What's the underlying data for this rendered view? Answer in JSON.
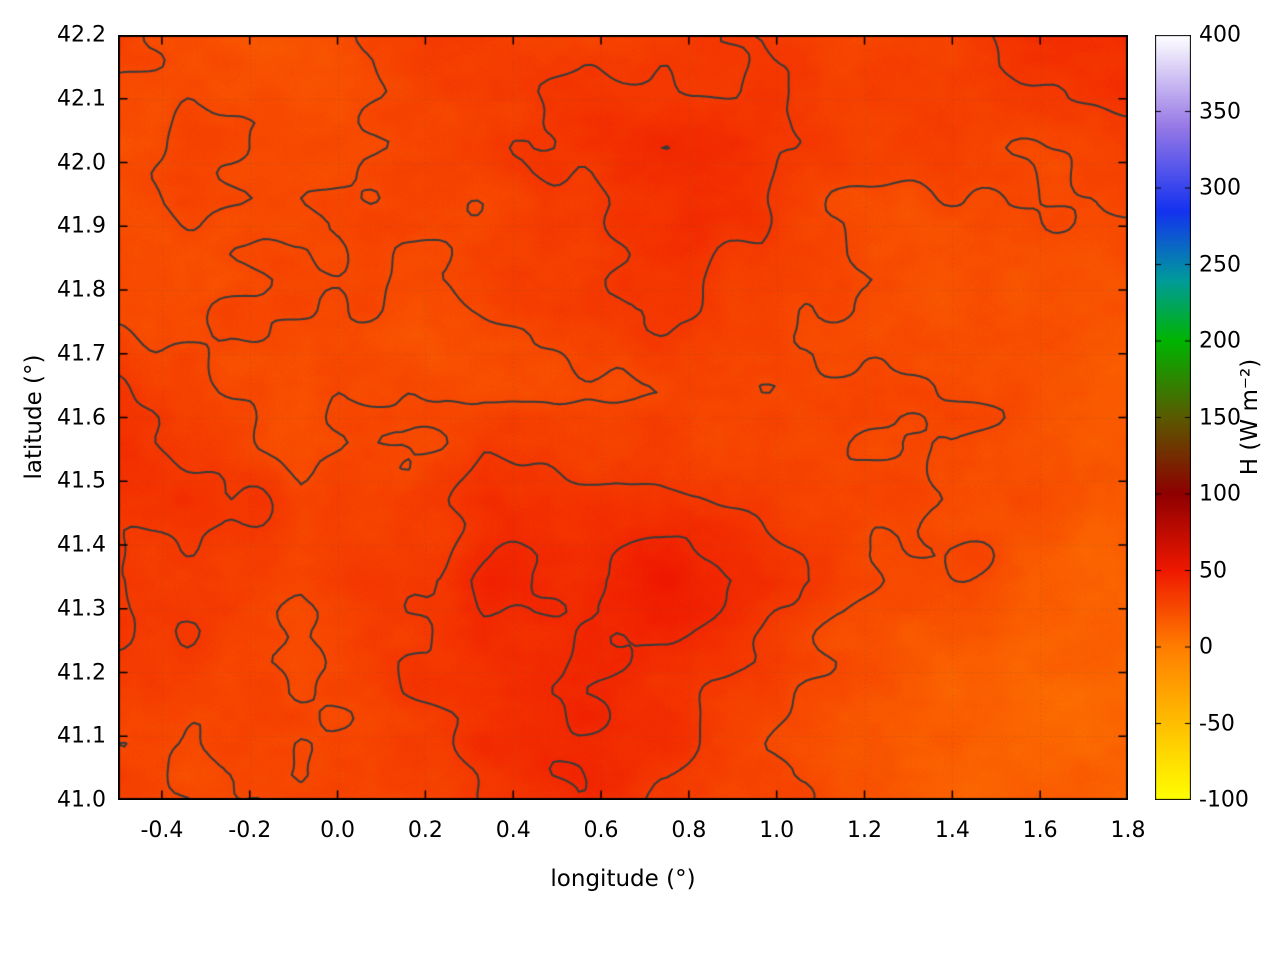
{
  "figure": {
    "background_color": "#ffffff"
  },
  "chart_data": {
    "type": "heatmap",
    "title": "",
    "xlabel": "longitude (°)",
    "ylabel": "latitude (°)",
    "xlim": [
      -0.5,
      1.8
    ],
    "ylim": [
      41.0,
      42.2
    ],
    "grid": "on",
    "x_ticks": {
      "values": [
        -0.4,
        -0.2,
        0.0,
        0.2,
        0.4,
        0.6,
        0.8,
        1.0,
        1.2,
        1.4,
        1.6,
        1.8
      ],
      "labels": [
        "-0.4",
        "-0.2",
        "0.0",
        "0.2",
        "0.4",
        "0.6",
        "0.8",
        "1.0",
        "1.2",
        "1.4",
        "1.6",
        "1.8"
      ]
    },
    "y_ticks": {
      "values": [
        41.0,
        41.1,
        41.2,
        41.3,
        41.4,
        41.5,
        41.6,
        41.7,
        41.8,
        41.9,
        42.0,
        42.1,
        42.2
      ],
      "labels": [
        "41.0",
        "41.1",
        "41.2",
        "41.3",
        "41.4",
        "41.5",
        "41.6",
        "41.7",
        "41.8",
        "41.9",
        "42.0",
        "42.1",
        "42.2"
      ]
    },
    "colorbar": {
      "label": "H (W m⁻²)",
      "range": [
        -100,
        400
      ],
      "tick_values": [
        -100,
        -50,
        0,
        50,
        100,
        150,
        200,
        250,
        300,
        350,
        400
      ],
      "tick_labels": [
        "-100",
        "-50",
        "0",
        "50",
        "100",
        "150",
        "200",
        "250",
        "300",
        "350",
        "400"
      ],
      "position": "right-vertical",
      "palette": [
        {
          "value": -100,
          "color": "#ffff00"
        },
        {
          "value": -50,
          "color": "#ffbe00"
        },
        {
          "value": 0,
          "color": "#ff7d00"
        },
        {
          "value": 50,
          "color": "#ef1800"
        },
        {
          "value": 100,
          "color": "#8f0000"
        },
        {
          "value": 150,
          "color": "#5a5a00"
        },
        {
          "value": 200,
          "color": "#00b400"
        },
        {
          "value": 240,
          "color": "#009b9b"
        },
        {
          "value": 285,
          "color": "#1432f0"
        },
        {
          "value": 340,
          "color": "#9678e6"
        },
        {
          "value": 400,
          "color": "#ffffff"
        }
      ]
    },
    "field": {
      "name": "H",
      "units": "W m⁻²",
      "grid_lon": [
        -0.5,
        -0.29,
        -0.08,
        0.13,
        0.34,
        0.55,
        0.75,
        0.96,
        1.17,
        1.38,
        1.59,
        1.8
      ],
      "grid_lat_top_to_bottom": [
        42.2,
        42.03,
        41.86,
        41.69,
        41.51,
        41.34,
        41.17,
        41.0
      ],
      "values": [
        [
          28,
          26,
          27,
          29,
          31,
          30,
          33,
          36,
          30,
          33,
          38,
          40
        ],
        [
          26,
          24,
          25,
          28,
          30,
          32,
          38,
          40,
          32,
          30,
          30,
          32
        ],
        [
          24,
          22,
          23,
          26,
          28,
          30,
          32,
          34,
          28,
          26,
          25,
          26
        ],
        [
          34,
          27,
          22,
          21,
          25,
          27,
          28,
          26,
          25,
          24,
          23,
          22
        ],
        [
          42,
          36,
          26,
          31,
          38,
          32,
          28,
          30,
          26,
          23,
          21,
          20
        ],
        [
          40,
          33,
          29,
          36,
          46,
          40,
          46,
          44,
          32,
          22,
          19,
          17
        ],
        [
          32,
          29,
          26,
          33,
          40,
          44,
          42,
          36,
          24,
          17,
          14,
          12
        ],
        [
          29,
          26,
          23,
          29,
          37,
          40,
          36,
          28,
          19,
          14,
          11,
          10
        ]
      ]
    },
    "contours": {
      "levels": [
        26,
        34,
        42
      ],
      "color": "#3a3a3a"
    }
  }
}
